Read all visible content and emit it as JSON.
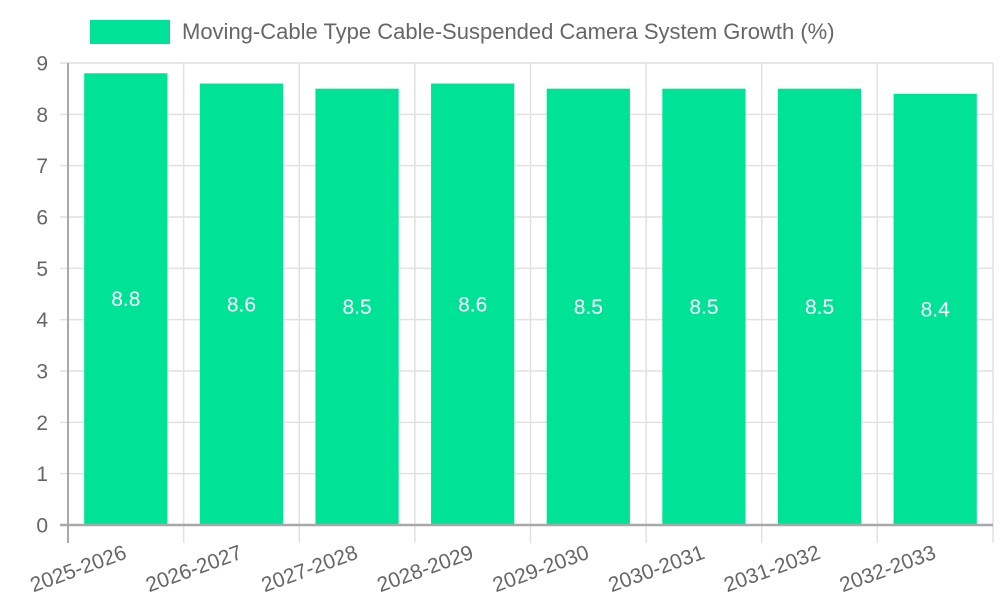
{
  "chart_data": {
    "type": "bar",
    "title": "",
    "legend": [
      {
        "label": "Moving-Cable Type Cable-Suspended Camera System Growth (%)",
        "color": "#00e396"
      }
    ],
    "legend_position": "top",
    "categories": [
      "2025-2026",
      "2026-2027",
      "2027-2028",
      "2028-2029",
      "2029-2030",
      "2030-2031",
      "2031-2032",
      "2032-2033"
    ],
    "series": [
      {
        "name": "Moving-Cable Type Cable-Suspended Camera System Growth (%)",
        "values": [
          8.8,
          8.6,
          8.5,
          8.6,
          8.5,
          8.5,
          8.5,
          8.4
        ],
        "color": "#00e396"
      }
    ],
    "data_labels": [
      "8.8",
      "8.6",
      "8.5",
      "8.6",
      "8.5",
      "8.5",
      "8.5",
      "8.4"
    ],
    "xlabel": "",
    "ylabel": "",
    "ylim": [
      0,
      9
    ],
    "yticks": [
      0,
      1,
      2,
      3,
      4,
      5,
      6,
      7,
      8,
      9
    ],
    "grid": true,
    "x_tick_rotation": -20
  },
  "legend": {
    "label": "Moving-Cable Type Cable-Suspended Camera System Growth (%)",
    "color": "#00e396"
  },
  "colors": {
    "bar": "#00e396",
    "grid": "#e1e1e1",
    "axis": "#a8a8a8",
    "text": "#666666",
    "bar_label": "#ffffff"
  }
}
